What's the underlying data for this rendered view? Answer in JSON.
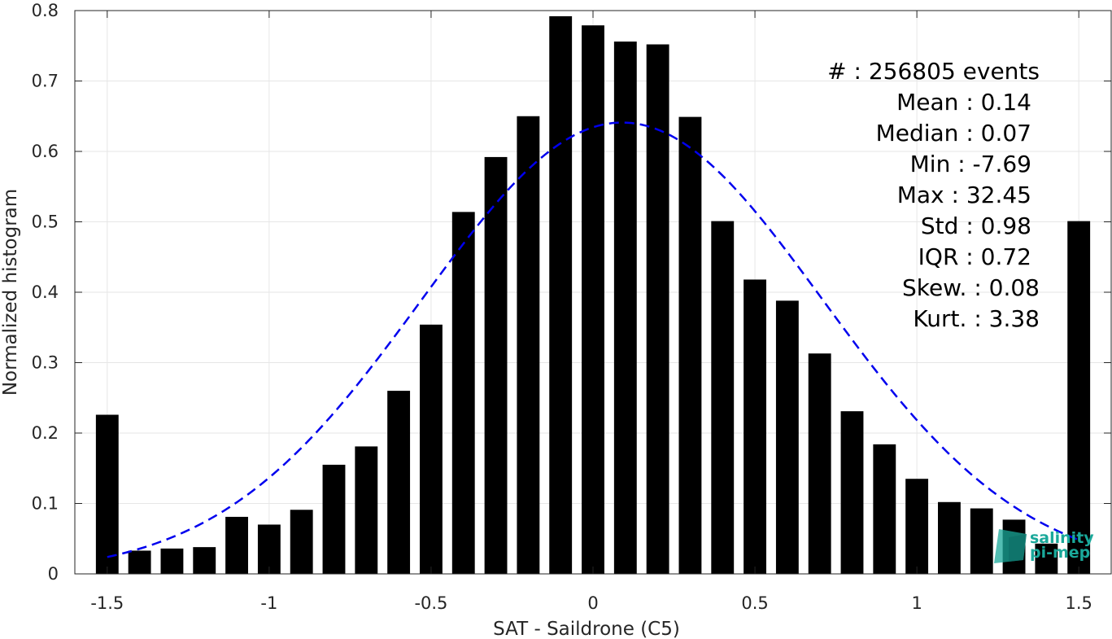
{
  "chart_data": {
    "type": "bar",
    "xlabel": "SAT - Saildrone (C5)",
    "ylabel": "Normalized histogram",
    "xlim": [
      -1.6,
      1.6
    ],
    "ylim": [
      0,
      0.8
    ],
    "grid": true,
    "xticks": [
      -1.5,
      -1,
      -0.5,
      0,
      0.5,
      1,
      1.5
    ],
    "xtick_labels": [
      "-1.5",
      "-1",
      "-0.5",
      "0",
      "0.5",
      "1",
      "1.5"
    ],
    "yticks": [
      0,
      0.1,
      0.2,
      0.3,
      0.4,
      0.5,
      0.6,
      0.7,
      0.8
    ],
    "ytick_labels": [
      "0",
      "0.1",
      "0.2",
      "0.3",
      "0.4",
      "0.5",
      "0.6",
      "0.7",
      "0.8"
    ],
    "bar_color": "#000000",
    "bar_width": 0.07,
    "x": [
      -1.5,
      -1.4,
      -1.3,
      -1.2,
      -1.1,
      -1.0,
      -0.9,
      -0.8,
      -0.7,
      -0.6,
      -0.5,
      -0.4,
      -0.3,
      -0.2,
      -0.1,
      0.0,
      0.1,
      0.2,
      0.3,
      0.4,
      0.5,
      0.6,
      0.7,
      0.8,
      0.9,
      1.0,
      1.1,
      1.2,
      1.3,
      1.4,
      1.5
    ],
    "values": [
      0.226,
      0.033,
      0.036,
      0.038,
      0.081,
      0.07,
      0.091,
      0.155,
      0.181,
      0.26,
      0.354,
      0.514,
      0.592,
      0.65,
      0.792,
      0.779,
      0.756,
      0.752,
      0.649,
      0.501,
      0.418,
      0.388,
      0.313,
      0.231,
      0.184,
      0.135,
      0.102,
      0.093,
      0.077,
      0.043,
      0.501
    ],
    "fit_curve": {
      "style": "dashed",
      "color": "#0000ee",
      "mean": 0.09,
      "std": 0.62,
      "peak": 0.641,
      "x_range": [
        -1.5,
        1.5
      ]
    },
    "stats_lines": [
      "#  : 256805 events",
      "Mean : 0.14",
      "Median : 0.07",
      "Min : -7.69",
      "Max : 32.45",
      "Std : 0.98",
      "IQR : 0.72",
      "Skew. : 0.08",
      "Kurt. : 3.38"
    ]
  },
  "logo": {
    "line1": "salinity",
    "line2": "pi-mep",
    "color": "#1aa89a"
  }
}
